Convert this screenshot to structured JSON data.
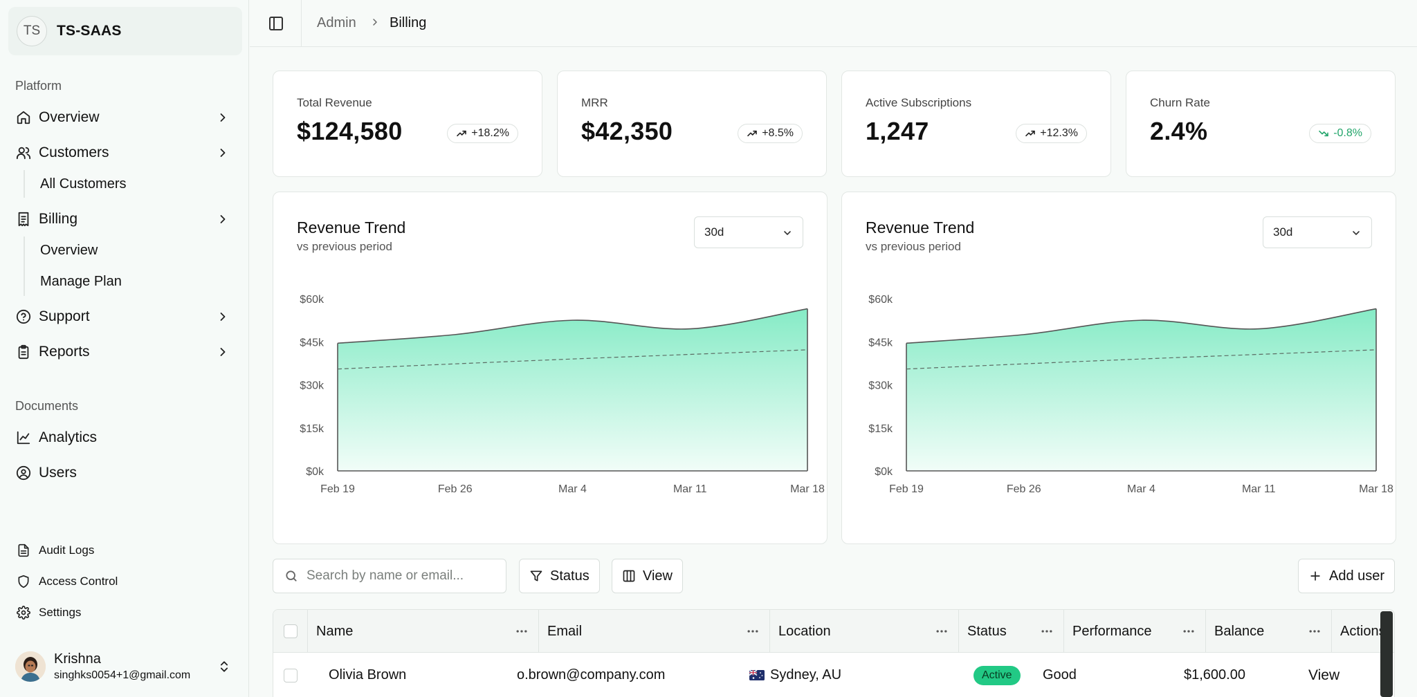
{
  "team": {
    "initials": "TS",
    "name": "TS-SAAS"
  },
  "sidebar": {
    "platform_label": "Platform",
    "documents_label": "Documents",
    "items": [
      {
        "label": "Overview",
        "icon": "home-icon"
      },
      {
        "label": "Customers",
        "icon": "users-icon"
      },
      {
        "label": "Billing",
        "icon": "receipt-icon"
      },
      {
        "label": "Support",
        "icon": "help-circle-icon"
      },
      {
        "label": "Reports",
        "icon": "clipboard-icon"
      }
    ],
    "customers_sub": [
      "All Customers"
    ],
    "billing_sub": [
      "Overview",
      "Manage Plan"
    ],
    "documents": [
      {
        "label": "Analytics",
        "icon": "line-chart-icon"
      },
      {
        "label": "Users",
        "icon": "user-circle-icon"
      }
    ],
    "footer": [
      {
        "label": "Audit Logs",
        "icon": "file-text-icon"
      },
      {
        "label": "Access Control",
        "icon": "shield-icon"
      },
      {
        "label": "Settings",
        "icon": "gear-icon"
      }
    ],
    "user": {
      "name": "Krishna",
      "email": "singhks0054+1@gmail.com"
    }
  },
  "breadcrumb": {
    "parent": "Admin",
    "current": "Billing"
  },
  "stats": [
    {
      "label": "Total Revenue",
      "value": "$124,580",
      "change": "+18.2%",
      "trend": "up"
    },
    {
      "label": "MRR",
      "value": "$42,350",
      "change": "+8.5%",
      "trend": "up"
    },
    {
      "label": "Active Subscriptions",
      "value": "1,247",
      "change": "+12.3%",
      "trend": "up"
    },
    {
      "label": "Churn Rate",
      "value": "2.4%",
      "change": "-0.8%",
      "trend": "down"
    }
  ],
  "charts": [
    {
      "title": "Revenue Trend",
      "subtitle": "vs previous period",
      "range": "30d"
    },
    {
      "title": "Revenue Trend",
      "subtitle": "vs previous period",
      "range": "30d"
    }
  ],
  "chart_data": [
    {
      "type": "area",
      "title": "Revenue Trend",
      "subtitle": "vs previous period",
      "x": [
        "Feb 19",
        "Feb 26",
        "Mar 4",
        "Mar 11",
        "Mar 18"
      ],
      "y_ticks": [
        "$0k",
        "$15k",
        "$30k",
        "$45k",
        "$60k"
      ],
      "ylim": [
        0,
        60
      ],
      "series": [
        {
          "values": [
            44.5,
            47.5,
            52.5,
            49.5,
            56.5
          ],
          "style": "area"
        },
        {
          "values": [
            35.5,
            37.3,
            39,
            40.6,
            42.2
          ],
          "style": "dashed"
        }
      ],
      "colors": {
        "fill_top": "#86ebc6",
        "fill_bottom": "#f1fdf8",
        "line": "#555555"
      }
    },
    {
      "type": "area",
      "title": "Revenue Trend",
      "subtitle": "vs previous period",
      "x": [
        "Feb 19",
        "Feb 26",
        "Mar 4",
        "Mar 11",
        "Mar 18"
      ],
      "y_ticks": [
        "$0k",
        "$15k",
        "$30k",
        "$45k",
        "$60k"
      ],
      "ylim": [
        0,
        60
      ],
      "series": [
        {
          "values": [
            44.5,
            47.5,
            52.5,
            49.5,
            56.5
          ],
          "style": "area"
        },
        {
          "values": [
            35.5,
            37.3,
            39,
            40.6,
            42.2
          ],
          "style": "dashed"
        }
      ],
      "colors": {
        "fill_top": "#86ebc6",
        "fill_bottom": "#f1fdf8",
        "line": "#555555"
      }
    }
  ],
  "toolbar": {
    "search_placeholder": "Search by name or email...",
    "status_label": "Status",
    "view_label": "View",
    "add_user_label": "Add user"
  },
  "table": {
    "columns": [
      "Name",
      "Email",
      "Location",
      "Status",
      "Performance",
      "Balance",
      "Actions"
    ],
    "rows": [
      {
        "name": "Olivia Brown",
        "email": "o.brown@company.com",
        "location": "Sydney, AU",
        "status": "Active",
        "performance": "Good",
        "balance": "$1,600.00",
        "action": "View"
      }
    ]
  }
}
